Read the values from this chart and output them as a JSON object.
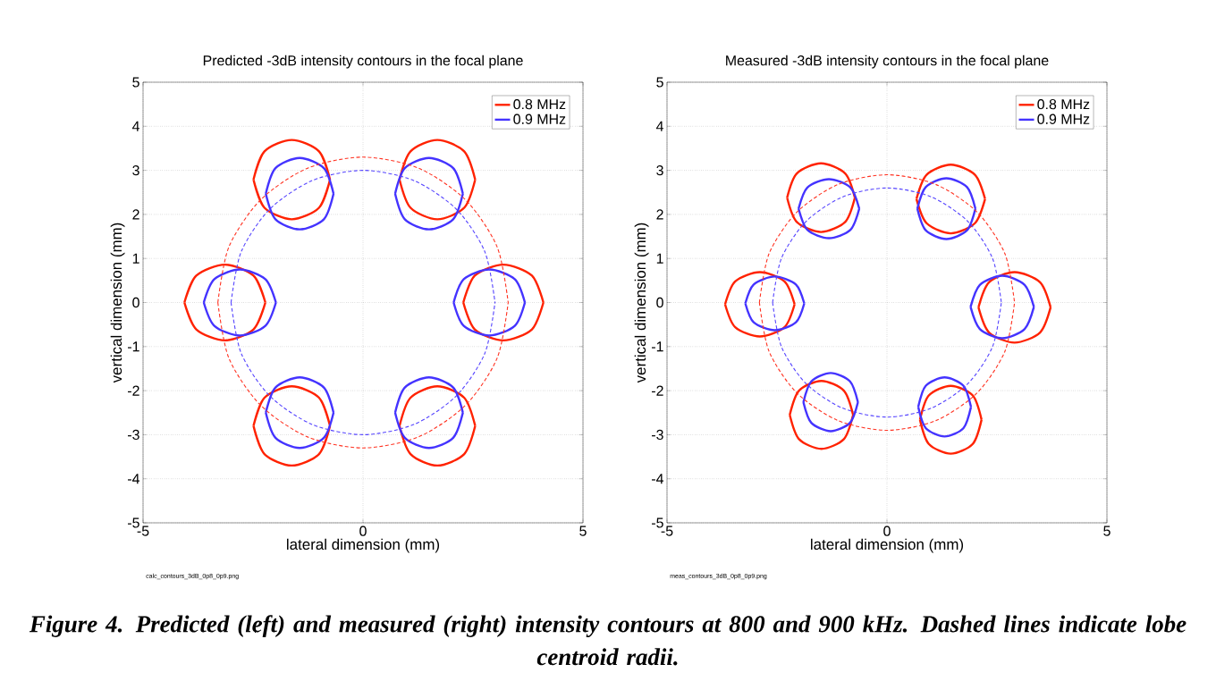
{
  "chart_data": [
    {
      "type": "line",
      "title": "Predicted -3dB intensity contours in the focal plane",
      "xlabel": "lateral dimension (mm)",
      "ylabel": "vertical dimension (mm)",
      "xlim": [
        -5,
        5
      ],
      "ylim": [
        -5,
        5
      ],
      "xticks": [
        -5,
        0,
        5
      ],
      "yticks": [
        -5,
        -4,
        -3,
        -2,
        -1,
        0,
        1,
        2,
        3,
        4,
        5
      ],
      "grid": true,
      "legend": "top right",
      "series": [
        {
          "name": "0.8 MHz",
          "color": "#ff2200",
          "x": [
            -4.06,
            -3.79,
            -3.14,
            -2.49,
            -2.22,
            null,
            -4.06,
            -3.79,
            -3.14,
            -2.49,
            -2.22,
            null,
            -2.49,
            -2.24,
            -1.62,
            -1.0,
            -0.75,
            null,
            -2.49,
            -2.24,
            -1.62,
            -1.0,
            -0.75,
            null,
            0.83,
            1.08,
            1.69,
            2.3,
            2.55,
            null,
            0.83,
            1.08,
            1.69,
            2.3,
            2.55,
            null,
            2.28,
            2.54,
            3.19,
            3.84,
            4.1,
            null,
            2.28,
            2.54,
            3.19,
            3.84,
            4.1,
            null,
            -2.49,
            -2.24,
            -1.62,
            -1.0,
            -0.75,
            null,
            -2.49,
            -2.24,
            -1.62,
            -1.0,
            -0.75,
            null,
            0.83,
            1.08,
            1.69,
            2.3,
            2.55,
            null,
            0.83,
            1.08,
            1.69,
            2.3,
            2.55
          ],
          "values": [
            0,
            0.61,
            0.86,
            0.61,
            0,
            null,
            0,
            -0.61,
            -0.86,
            -0.61,
            0,
            null,
            2.79,
            3.43,
            3.69,
            3.43,
            2.79,
            null,
            2.79,
            2.15,
            1.89,
            2.15,
            2.79,
            null,
            2.79,
            3.43,
            3.69,
            3.43,
            2.79,
            null,
            2.79,
            2.15,
            1.89,
            2.15,
            2.79,
            null,
            0,
            0.61,
            0.86,
            0.61,
            0,
            null,
            0,
            -0.61,
            -0.86,
            -0.61,
            0,
            null,
            -2.8,
            -2.16,
            -1.9,
            -2.16,
            -2.8,
            null,
            -2.8,
            -3.44,
            -3.7,
            -3.44,
            -2.8,
            null,
            -2.8,
            -2.16,
            -1.9,
            -2.16,
            -2.8,
            null,
            -2.8,
            -3.44,
            -3.7,
            -3.44,
            -2.8
          ]
        },
        {
          "name": "0.9 MHz",
          "color": "#4433ff",
          "x": [
            -3.62,
            -3.38,
            -2.8,
            -2.22,
            -1.98,
            null,
            -3.62,
            -3.38,
            -2.8,
            -2.22,
            -1.98,
            null,
            -2.21,
            -1.99,
            -1.44,
            -0.89,
            -0.67,
            null,
            -2.21,
            -1.99,
            -1.44,
            -0.89,
            -0.67,
            null,
            0.73,
            0.95,
            1.5,
            2.05,
            2.27,
            null,
            0.73,
            0.95,
            1.5,
            2.05,
            2.27,
            null,
            2.06,
            2.29,
            2.87,
            3.45,
            3.68,
            null,
            2.06,
            2.29,
            2.87,
            3.45,
            3.68,
            null,
            -2.21,
            -1.99,
            -1.44,
            -0.89,
            -0.67,
            null,
            -2.21,
            -1.99,
            -1.44,
            -0.89,
            -0.67,
            null,
            0.73,
            0.95,
            1.5,
            2.05,
            2.27,
            null,
            0.73,
            0.95,
            1.5,
            2.05,
            2.27
          ],
          "values": [
            0,
            0.53,
            0.75,
            0.53,
            0,
            null,
            0,
            -0.53,
            -0.75,
            -0.53,
            0,
            null,
            2.47,
            3.05,
            3.28,
            3.05,
            2.47,
            null,
            2.47,
            1.89,
            1.66,
            1.89,
            2.47,
            null,
            2.47,
            3.05,
            3.28,
            3.05,
            2.47,
            null,
            2.47,
            1.89,
            1.66,
            1.89,
            2.47,
            null,
            0,
            0.53,
            0.75,
            0.53,
            0,
            null,
            0,
            -0.53,
            -0.75,
            -0.53,
            0,
            null,
            -2.5,
            -1.93,
            -1.7,
            -1.93,
            -2.5,
            null,
            -2.5,
            -3.07,
            -3.3,
            -3.07,
            -2.5,
            null,
            -2.5,
            -1.93,
            -1.7,
            -1.93,
            -2.5,
            null,
            -2.5,
            -3.07,
            -3.3,
            -3.07,
            -2.5
          ]
        },
        {
          "color": "#ff3322",
          "line_style": "dashed",
          "x": [
            -3.3,
            -3.05,
            -2.33,
            -1.26,
            0,
            1.26,
            2.33,
            3.05,
            3.3,
            null,
            -3.3,
            -3.05,
            -2.33,
            -1.26,
            0,
            1.26,
            2.33,
            3.05,
            3.3
          ],
          "values": [
            0,
            1.26,
            2.33,
            3.05,
            3.3,
            3.05,
            2.33,
            1.26,
            0,
            null,
            0,
            -1.26,
            -2.33,
            -3.05,
            -3.3,
            -3.05,
            -2.33,
            -1.26,
            0
          ]
        },
        {
          "color": "#5544ff",
          "line_style": "dashed",
          "x": [
            -3.0,
            -2.77,
            -2.12,
            -1.15,
            0,
            1.15,
            2.12,
            2.77,
            3.0,
            null,
            -3.0,
            -2.77,
            -2.12,
            -1.15,
            0,
            1.15,
            2.12,
            2.77,
            3.0
          ],
          "values": [
            0,
            1.15,
            2.12,
            2.77,
            3.0,
            2.77,
            2.12,
            1.15,
            0,
            null,
            0,
            -1.15,
            -2.12,
            -2.77,
            -3.0,
            -2.77,
            -2.12,
            -1.15,
            0
          ]
        }
      ],
      "annotations": [
        "calc_contours_3dB_0p8_0p9.png"
      ]
    },
    {
      "type": "line",
      "title": "Measured -3dB intensity contours in the focal plane",
      "xlabel": "lateral dimension (mm)",
      "ylabel": "vertical dimension (mm)",
      "xlim": [
        -5,
        5
      ],
      "ylim": [
        -5,
        5
      ],
      "xticks": [
        -5,
        0,
        5
      ],
      "yticks": [
        -5,
        -4,
        -3,
        -2,
        -1,
        0,
        1,
        2,
        3,
        4,
        5
      ],
      "grid": true,
      "legend": "top right",
      "series": [
        {
          "name": "0.8 MHz",
          "color": "#ff2200",
          "x": [
            -3.68,
            -3.45,
            -2.89,
            -2.33,
            -2.1,
            null,
            -3.68,
            -3.45,
            -2.89,
            -2.33,
            -2.1,
            null,
            -2.27,
            -2.05,
            -1.5,
            -0.95,
            -0.73,
            null,
            -2.27,
            -2.05,
            -1.5,
            -0.95,
            -0.73,
            null,
            0.67,
            0.9,
            1.45,
            2.0,
            2.23,
            null,
            0.67,
            0.9,
            1.45,
            2.0,
            2.23,
            null,
            2.08,
            2.32,
            2.9,
            3.48,
            3.72,
            null,
            2.08,
            2.32,
            2.9,
            3.48,
            3.72,
            null,
            -2.21,
            -2.0,
            -1.49,
            -0.98,
            -0.77,
            null,
            -2.21,
            -2.0,
            -1.49,
            -0.98,
            -0.77,
            null,
            0.75,
            0.95,
            1.45,
            1.95,
            2.15,
            null,
            0.75,
            0.95,
            1.45,
            1.95,
            2.15
          ],
          "values": [
            -0.04,
            0.48,
            0.69,
            0.48,
            -0.04,
            null,
            -0.04,
            -0.56,
            -0.77,
            -0.56,
            -0.04,
            null,
            2.38,
            2.93,
            3.16,
            2.93,
            2.38,
            null,
            2.38,
            1.83,
            1.6,
            1.83,
            2.38,
            null,
            2.35,
            2.9,
            3.13,
            2.9,
            2.35,
            null,
            2.35,
            1.8,
            1.57,
            1.8,
            2.35,
            null,
            -0.11,
            0.46,
            0.69,
            0.46,
            -0.11,
            null,
            -0.11,
            -0.68,
            -0.91,
            -0.68,
            -0.11,
            null,
            -2.55,
            -2.0,
            -1.78,
            -2.0,
            -2.55,
            null,
            -2.55,
            -3.1,
            -3.32,
            -3.1,
            -2.55,
            null,
            -2.66,
            -2.11,
            -1.89,
            -2.11,
            -2.66,
            null,
            -2.66,
            -3.21,
            -3.43,
            -3.21,
            -2.66
          ]
        },
        {
          "name": "0.9 MHz",
          "color": "#4433ff",
          "x": [
            -3.22,
            -3.03,
            -2.55,
            -2.07,
            -1.88,
            null,
            -3.22,
            -3.03,
            -2.55,
            -2.07,
            -1.88,
            null,
            -2.01,
            -1.81,
            -1.32,
            -0.83,
            -0.63,
            null,
            -2.01,
            -1.81,
            -1.32,
            -0.83,
            -0.63,
            null,
            0.69,
            0.88,
            1.35,
            1.82,
            2.01,
            null,
            0.69,
            0.88,
            1.35,
            1.82,
            2.01,
            null,
            1.9,
            2.11,
            2.62,
            3.13,
            3.34,
            null,
            1.9,
            2.11,
            2.62,
            3.13,
            3.34,
            null,
            -1.9,
            -1.72,
            -1.28,
            -0.84,
            -0.66,
            null,
            -1.9,
            -1.72,
            -1.28,
            -0.84,
            -0.66,
            null,
            0.71,
            0.88,
            1.31,
            1.74,
            1.91,
            null,
            0.71,
            0.88,
            1.31,
            1.74,
            1.91
          ],
          "values": [
            -0.02,
            0.41,
            0.59,
            0.41,
            -0.02,
            null,
            -0.02,
            -0.45,
            -0.63,
            -0.45,
            -0.02,
            null,
            2.13,
            2.61,
            2.8,
            2.61,
            2.13,
            null,
            2.13,
            1.65,
            1.46,
            1.65,
            2.13,
            null,
            2.13,
            2.62,
            2.82,
            2.62,
            2.13,
            null,
            2.13,
            1.64,
            1.44,
            1.64,
            2.13,
            null,
            -0.1,
            0.4,
            0.61,
            0.4,
            -0.1,
            null,
            -0.1,
            -0.6,
            -0.81,
            -0.6,
            -0.1,
            null,
            -2.26,
            -1.79,
            -1.6,
            -1.79,
            -2.26,
            null,
            -2.26,
            -2.73,
            -2.92,
            -2.73,
            -2.26,
            null,
            -2.37,
            -1.89,
            -1.7,
            -1.89,
            -2.37,
            null,
            -2.37,
            -2.85,
            -3.04,
            -2.85,
            -2.37
          ]
        },
        {
          "color": "#ff3322",
          "line_style": "dashed",
          "x": [
            -2.9,
            -2.68,
            -2.05,
            -1.11,
            0,
            1.11,
            2.05,
            2.68,
            2.9,
            null,
            -2.9,
            -2.68,
            -2.05,
            -1.11,
            0,
            1.11,
            2.05,
            2.68,
            2.9
          ],
          "values": [
            0,
            1.11,
            2.05,
            2.68,
            2.9,
            2.68,
            2.05,
            1.11,
            0,
            null,
            0,
            -1.11,
            -2.05,
            -2.68,
            -2.9,
            -2.68,
            -2.05,
            -1.11,
            0
          ]
        },
        {
          "color": "#5544ff",
          "line_style": "dashed",
          "x": [
            -2.6,
            -2.4,
            -1.84,
            -1.0,
            0,
            1.0,
            1.84,
            2.4,
            2.6,
            null,
            -2.6,
            -2.4,
            -1.84,
            -1.0,
            0,
            1.0,
            1.84,
            2.4,
            2.6
          ],
          "values": [
            0,
            1.0,
            1.84,
            2.4,
            2.6,
            2.4,
            1.84,
            1.0,
            0,
            null,
            0,
            -1.0,
            -1.84,
            -2.4,
            -2.6,
            -2.4,
            -1.84,
            -1.0,
            0
          ]
        }
      ],
      "annotations": [
        "meas_contours_3dB_0p8_0p9.png",
        "Figure 4.  Predicted (left) and measured (right) intensity contours at 800 and 900 kHz.  Dashed lines indicate lobe centroid radii."
      ]
    }
  ]
}
